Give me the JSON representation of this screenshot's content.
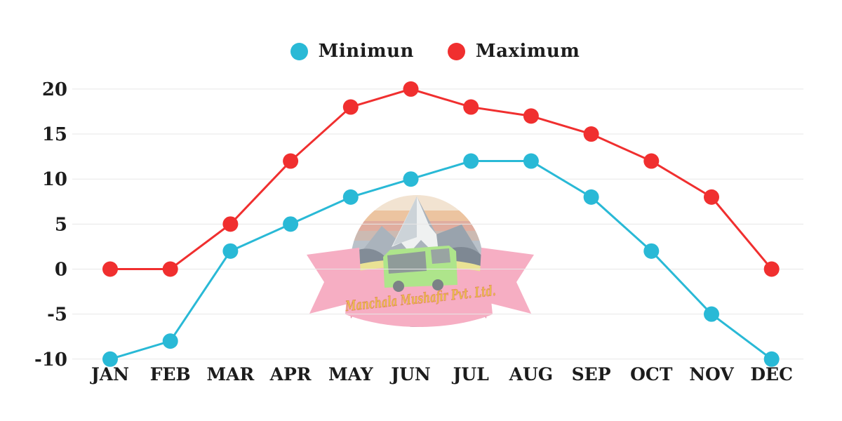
{
  "chart_data": {
    "type": "line",
    "title": "",
    "x": [
      "JAN",
      "FEB",
      "MAR",
      "APR",
      "MAY",
      "JUN",
      "JUL",
      "AUG",
      "SEP",
      "OCT",
      "NOV",
      "DEC"
    ],
    "series": [
      {
        "name": "Minimun",
        "color": "#29b9d6",
        "values": [
          -10,
          -8,
          2,
          5,
          8,
          10,
          12,
          12,
          8,
          2,
          -5,
          -10
        ]
      },
      {
        "name": "Maximum",
        "color": "#f02f2f",
        "values": [
          0,
          0,
          5,
          12,
          18,
          20,
          18,
          17,
          15,
          12,
          8,
          0
        ]
      }
    ],
    "yticks": [
      20,
      15,
      10,
      5,
      0,
      -5,
      -10
    ],
    "ylim": [
      -10,
      20
    ],
    "grid": true,
    "legend_position": "top-center",
    "gridline_color": "#e7e7e7",
    "label_color": "#1c1c1c",
    "marker": "circle",
    "marker_radius": 11
  },
  "watermark": {
    "text": "Manchala Mushafir Pvt. Ltd."
  }
}
